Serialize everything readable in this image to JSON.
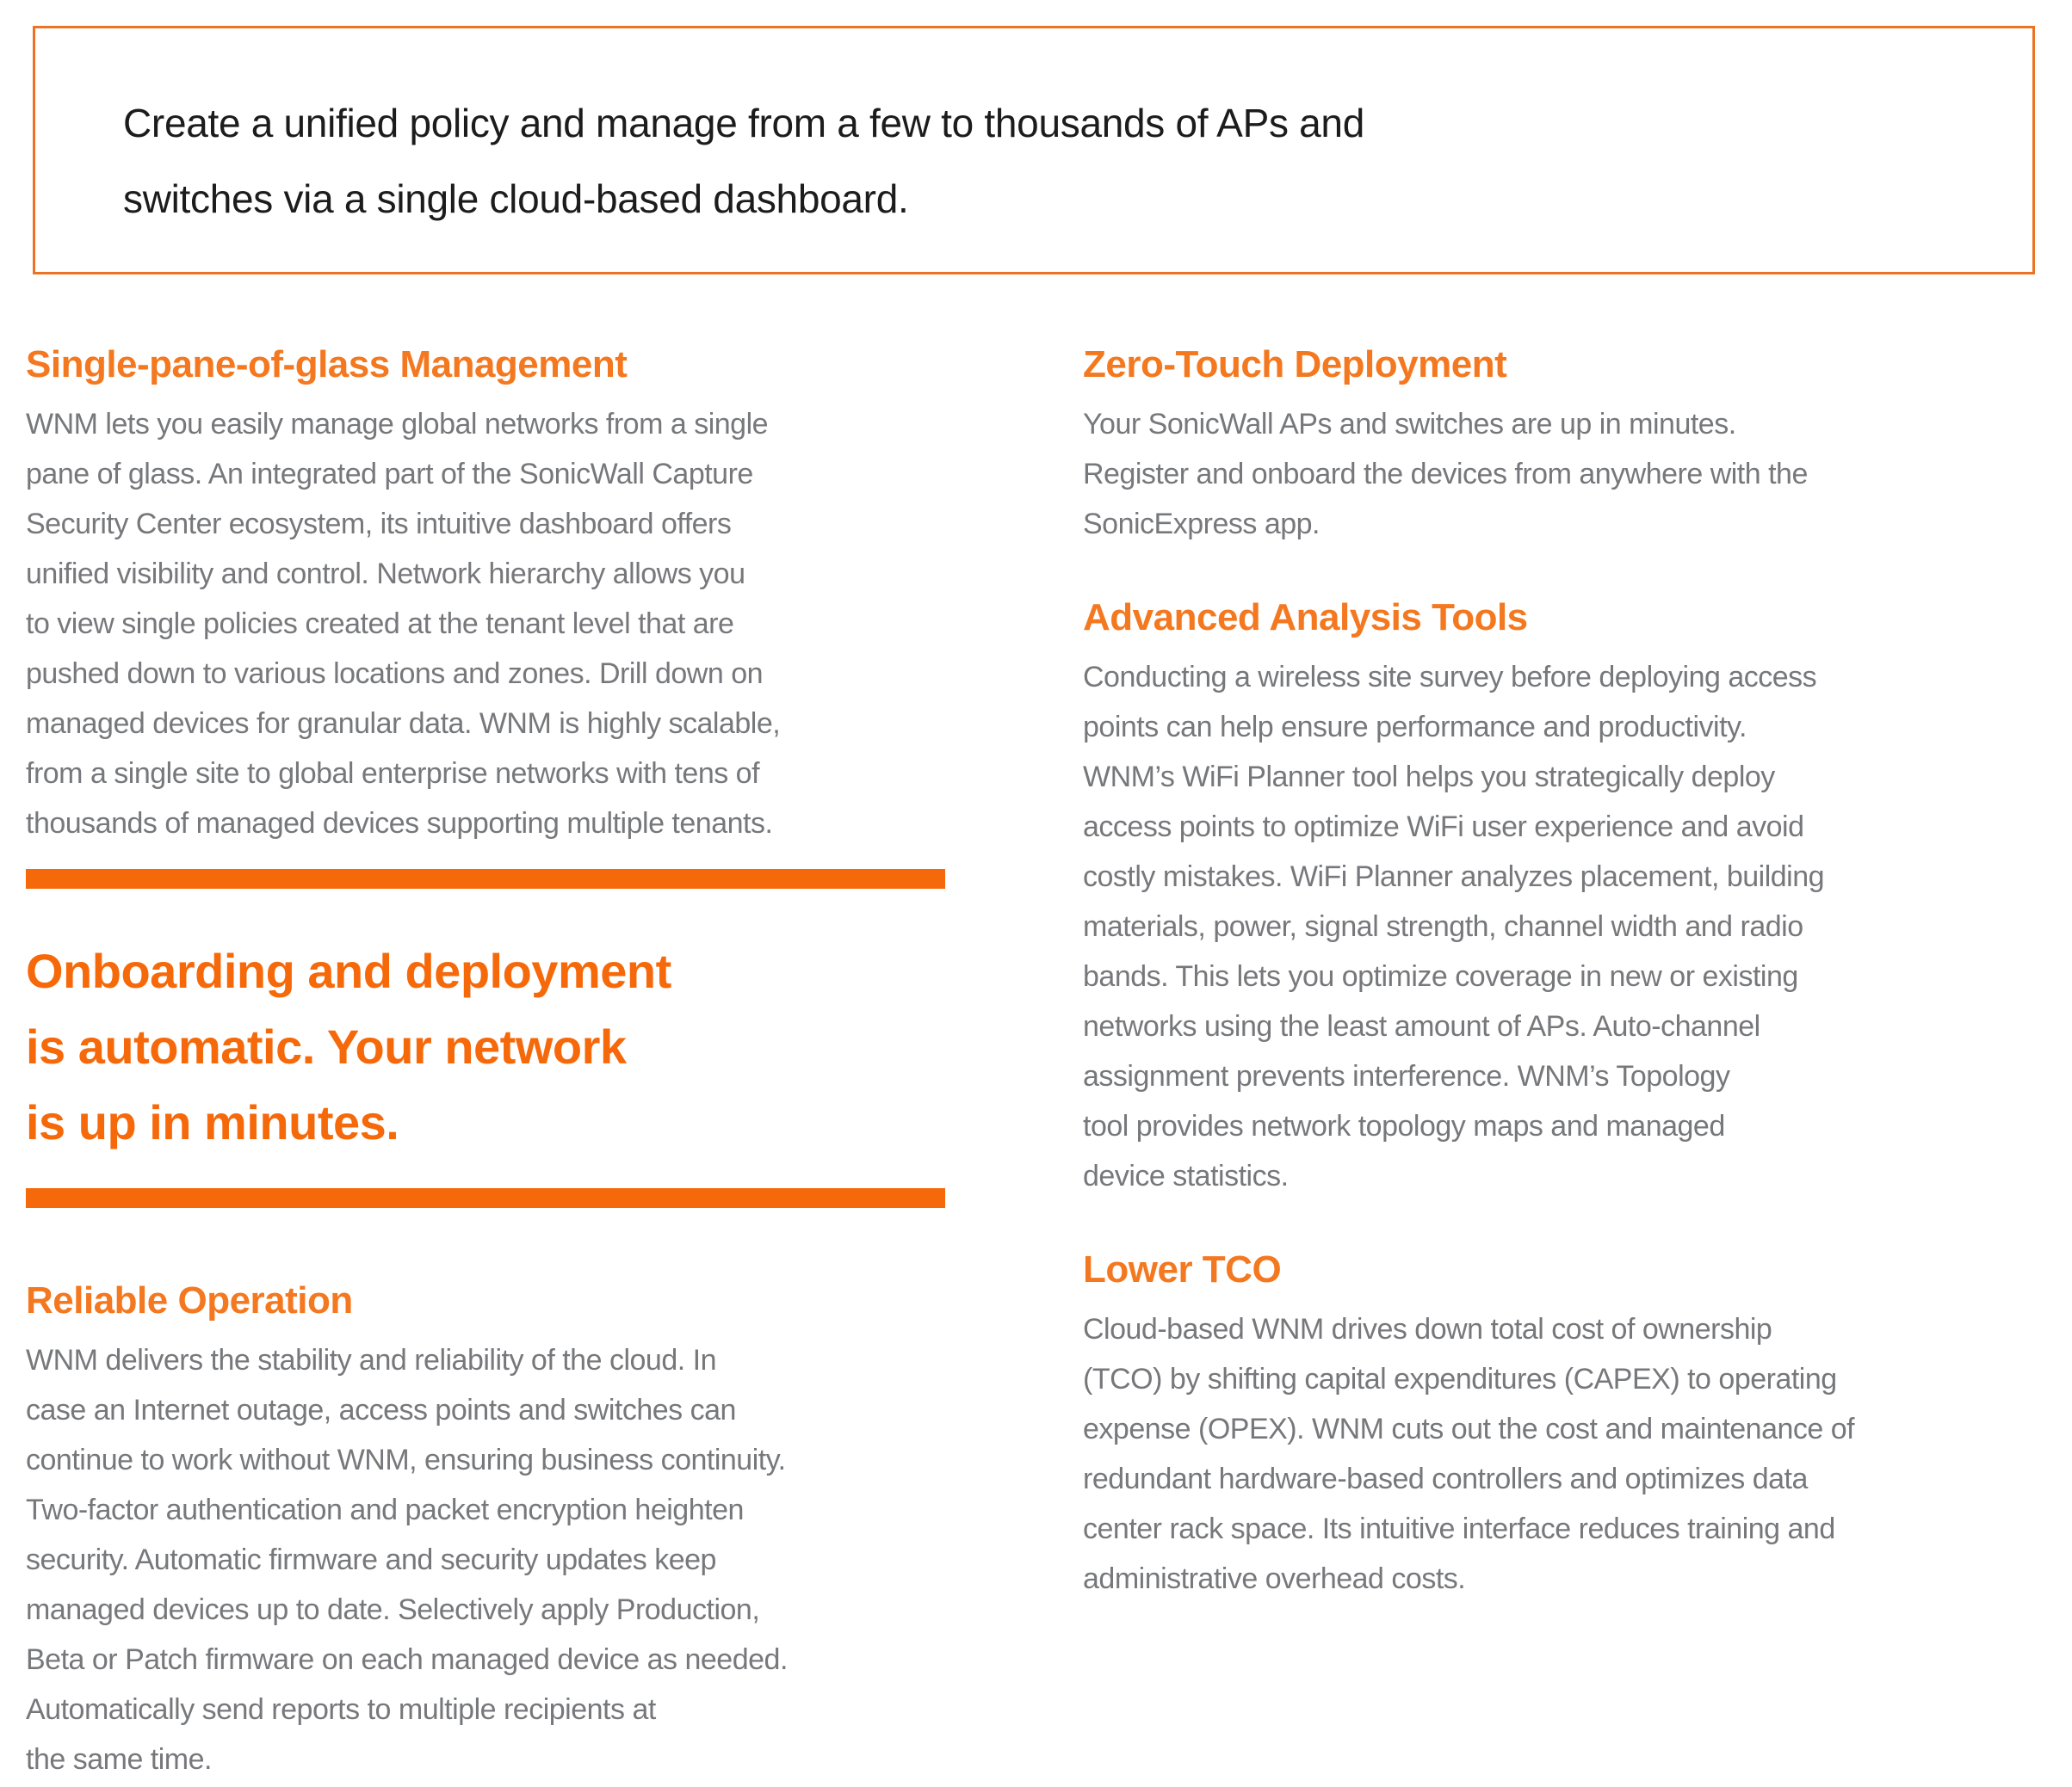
{
  "colors": {
    "accent_orange": "#f6690a",
    "heading_orange": "#f4781f",
    "border_orange": "#eb7323",
    "body_gray": "#77787b",
    "callout_text_color": "#1c1c1c",
    "background": "#ffffff"
  },
  "callout": {
    "text": "Create a unified policy and manage from a few to thousands of APs and\nswitches via a single cloud-based dashboard."
  },
  "left_column": {
    "section1": {
      "title": "Single-pane-of-glass Management",
      "body": "WNM lets you easily manage global networks from a single\npane of glass. An integrated part of the SonicWall Capture\nSecurity Center ecosystem, its intuitive dashboard offers\nunified visibility and control. Network hierarchy allows you\nto view single policies created at the tenant level that are\npushed down to various locations and zones. Drill down on\nmanaged devices for granular data. WNM is highly scalable,\nfrom a single site to global enterprise networks with tens of\nthousands of managed devices supporting multiple tenants."
    },
    "pull_quote": "Onboarding and deployment\nis automatic. Your network\nis up in minutes.",
    "section2": {
      "title": "Reliable Operation",
      "body": "WNM delivers the stability and reliability of the cloud. In\ncase an Internet outage, access points and switches can\ncontinue to work without WNM, ensuring business continuity.\nTwo-factor authentication and packet encryption heighten\nsecurity. Automatic firmware and security updates keep\nmanaged devices up to date. Selectively apply Production,\nBeta or Patch firmware on each managed device as needed.\nAutomatically send reports to multiple recipients at\nthe same time."
    }
  },
  "right_column": {
    "section1": {
      "title": "Zero-Touch Deployment",
      "body": "Your SonicWall APs and switches are up in minutes.\nRegister and onboard the devices from anywhere with the\nSonicExpress app."
    },
    "section2": {
      "title": "Advanced Analysis Tools",
      "body": "Conducting a wireless site survey before deploying access\npoints can help ensure performance and productivity.\nWNM’s WiFi Planner tool helps you strategically deploy\naccess points to optimize WiFi user experience and avoid\ncostly mistakes. WiFi Planner analyzes placement, building\nmaterials, power, signal strength, channel width and radio\nbands. This lets you optimize coverage in new or existing\nnetworks using the least amount of APs. Auto-channel\nassignment prevents interference. WNM’s Topology\ntool provides network topology maps and managed\ndevice statistics."
    },
    "section3": {
      "title": "Lower TCO",
      "body": "Cloud-based WNM drives down total cost of ownership\n(TCO) by shifting capital expenditures (CAPEX) to operating\nexpense (OPEX). WNM cuts out the cost and maintenance of\nredundant hardware-based controllers and optimizes data\ncenter rack space. Its intuitive interface reduces training and\nadministrative overhead costs."
    }
  }
}
